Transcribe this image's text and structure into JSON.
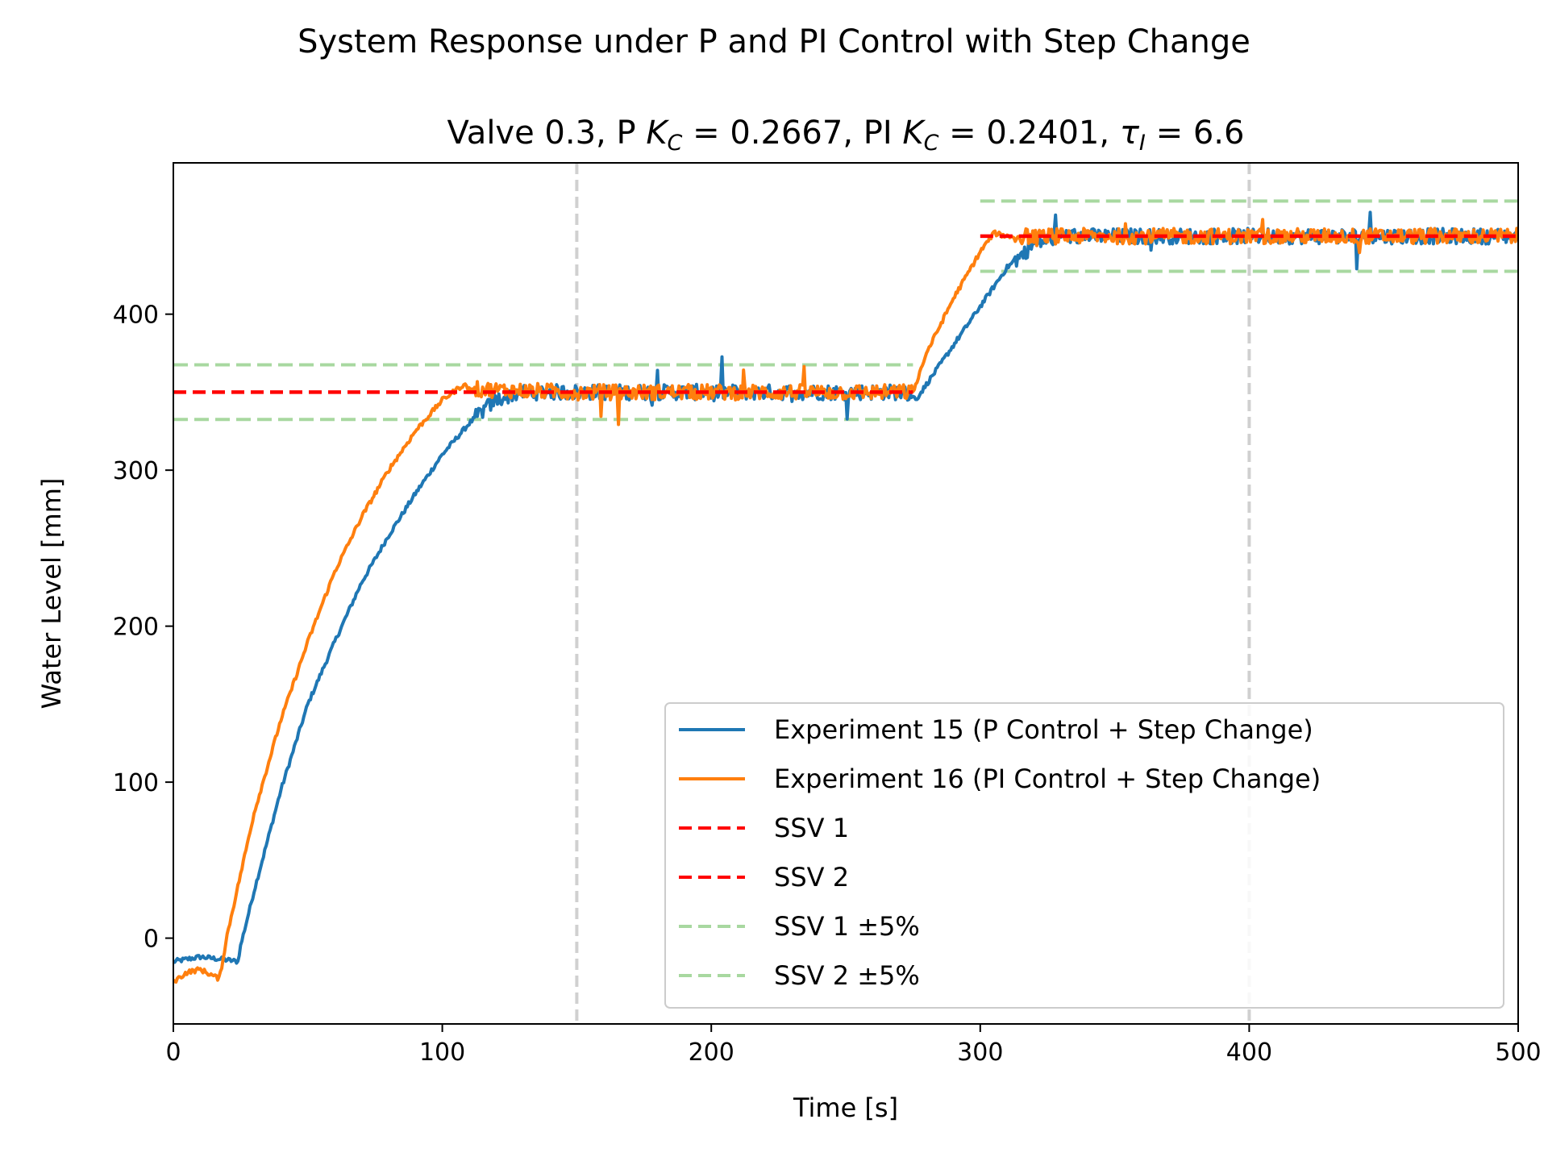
{
  "chart_data": {
    "type": "line",
    "suptitle": "System Response under P and PI Control with Step Change",
    "title": "Valve 0.3, P K_C = 0.2667, PI K_C = 0.2401, τ_I = 6.6",
    "title_parts": {
      "t1": "Valve 0.3, P ",
      "k1": "K",
      "s1": "C",
      "eq1": " = 0.2667, PI ",
      "k2": "K",
      "s2": "C",
      "eq2": " = 0.2401, ",
      "tau": "τ",
      "s3": "I",
      "eq3": " = 6.6"
    },
    "xlabel": "Time [s]",
    "ylabel": "Water Level [mm]",
    "xlim": [
      0,
      500
    ],
    "ylim": [
      -55,
      497
    ],
    "xticks": [
      0,
      100,
      200,
      300,
      400,
      500
    ],
    "yticks": [
      0,
      100,
      200,
      300,
      400
    ],
    "grid": false,
    "legend_position": "lower-right",
    "vlines": [
      150,
      400
    ],
    "series": [
      {
        "name": "Experiment 15 (P Control + Step Change)",
        "color": "#1f77b4",
        "x": [
          0,
          10,
          20,
          24,
          25,
          30,
          40,
          50,
          60,
          70,
          80,
          90,
          100,
          110,
          115,
          120,
          125,
          130,
          150,
          200,
          250,
          270,
          275,
          276,
          280,
          290,
          300,
          310,
          320,
          330,
          340,
          400,
          450,
          500
        ],
        "y": [
          -15,
          -12,
          -14,
          -15,
          -5,
          30,
          95,
          150,
          190,
          228,
          258,
          285,
          310,
          330,
          338,
          345,
          348,
          350,
          350,
          350,
          350,
          350,
          348,
          345,
          355,
          380,
          405,
          430,
          445,
          450,
          450,
          450,
          450,
          450
        ]
      },
      {
        "name": "Experiment 16 (PI Control + Step Change)",
        "color": "#ff7f0e",
        "x": [
          0,
          5,
          10,
          17,
          18,
          20,
          30,
          40,
          50,
          60,
          70,
          80,
          90,
          100,
          108,
          110,
          150,
          200,
          250,
          270,
          275,
          280,
          290,
          300,
          305,
          310,
          350,
          400,
          450,
          500
        ],
        "y": [
          -28,
          -22,
          -20,
          -26,
          -18,
          2,
          80,
          140,
          190,
          235,
          270,
          300,
          325,
          345,
          355,
          352,
          350,
          350,
          350,
          350,
          350,
          375,
          410,
          440,
          452,
          450,
          450,
          450,
          450,
          450
        ]
      }
    ],
    "reference_lines": [
      {
        "name": "SSV 1",
        "color": "#ff0000",
        "y": 350,
        "x": [
          0,
          275
        ]
      },
      {
        "name": "SSV 2",
        "color": "#ff0000",
        "y": 450,
        "x": [
          300,
          500
        ]
      },
      {
        "name": "SSV 1 ±5%",
        "color": "#a8d8a0",
        "y": [
          332.5,
          367.5
        ],
        "x": [
          0,
          275
        ]
      },
      {
        "name": "SSV 2 ±5%",
        "color": "#a8d8a0",
        "y": [
          427.5,
          472.5
        ],
        "x": [
          300,
          500
        ]
      }
    ],
    "legend": [
      {
        "label": "Experiment 15 (P Control + Step Change)",
        "color": "#1f77b4",
        "style": "solid"
      },
      {
        "label": "Experiment 16 (PI Control + Step Change)",
        "color": "#ff7f0e",
        "style": "solid"
      },
      {
        "label": "SSV 1",
        "color": "#ff0000",
        "style": "dashed"
      },
      {
        "label": "SSV 2",
        "color": "#ff0000",
        "style": "dashed"
      },
      {
        "label": "SSV 1 ±5%",
        "color": "#a8d8a0",
        "style": "dashed"
      },
      {
        "label": "SSV 2 ±5%",
        "color": "#a8d8a0",
        "style": "dashed"
      }
    ]
  }
}
